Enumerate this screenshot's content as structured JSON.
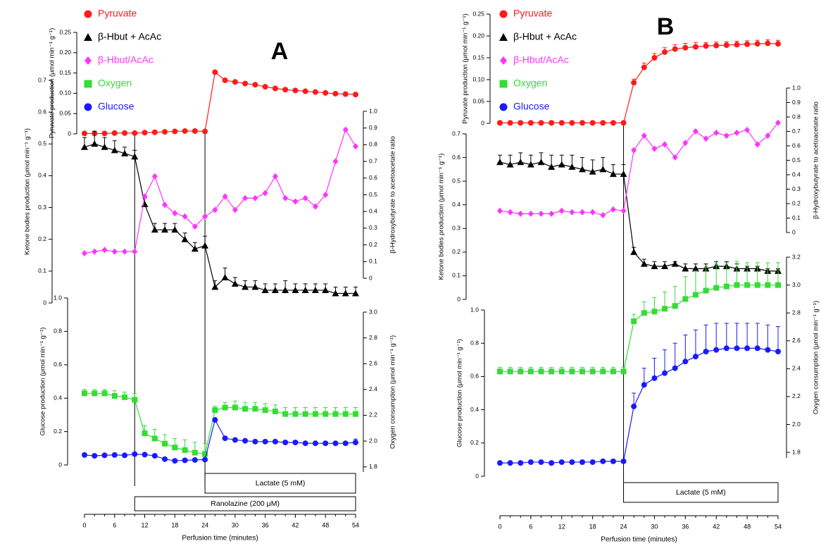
{
  "colors": {
    "pyruvate": "#ff1a1a",
    "ketone": "#000000",
    "ratio": "#ff33ff",
    "oxygen": "#33dd33",
    "glucose": "#1a1aff"
  },
  "legend": {
    "pyruvate": "Pyruvate",
    "hbut_acac": "β-Hbut + AcAc",
    "ratio": "β-Hbut/AcAc",
    "oxygen": "Oxygen",
    "glucose": "Glucose"
  },
  "chart_data": [
    {
      "type": "line",
      "panel_label": "A",
      "x_axis": {
        "label": "Perfusion time (minutes)",
        "ticks": [
          0,
          6,
          12,
          18,
          24,
          30,
          36,
          42,
          48,
          54
        ],
        "range": [
          0,
          54
        ]
      },
      "axes": {
        "pyruvate": {
          "label": "Pyruvate production (μmol min⁻¹ g⁻¹)",
          "ticks": [
            "0",
            "0.05",
            "0.10",
            "0.15",
            "0.20",
            "0.25"
          ],
          "range": [
            0,
            0.25
          ]
        },
        "ketone": {
          "label": "Ketone bodies production (μmol min⁻¹ g⁻¹)",
          "ticks": [
            "0",
            "0.1",
            "0.2",
            "0.3",
            "0.4",
            "0.5",
            "0.6",
            "0.7"
          ],
          "range": [
            0,
            0.7
          ]
        },
        "ratio": {
          "label": "β-Hydroxybutyrate to acetoacetate ratio",
          "ticks": [
            "0",
            "0.1",
            "0.2",
            "0.3",
            "0.4",
            "0.5",
            "0.6",
            "0.7",
            "0.8",
            "0.9",
            "1.0"
          ],
          "range": [
            0,
            1.0
          ]
        },
        "glucose": {
          "label": "Glucose production (μmol min⁻¹ g⁻¹)",
          "ticks": [
            "0",
            "0.2",
            "0.4",
            "0.6",
            "0.8",
            "1.0"
          ],
          "range": [
            0,
            1.0
          ]
        },
        "oxygen": {
          "label": "Oxygen consumption (μmol min⁻¹ g⁻¹)",
          "ticks": [
            "1.8",
            "2.0",
            "2.2",
            "2.4",
            "2.6",
            "2.8",
            "3.0"
          ],
          "range": [
            1.76,
            3.0
          ]
        }
      },
      "x": [
        0,
        2,
        4,
        6,
        8,
        10,
        12,
        14,
        16,
        18,
        20,
        22,
        24,
        26,
        28,
        30,
        32,
        34,
        36,
        38,
        40,
        42,
        44,
        46,
        48,
        50,
        52,
        54
      ],
      "series": [
        {
          "name": "Pyruvate",
          "axis": "pyruvate",
          "values": [
            0.001,
            0.001,
            0.001,
            0.002,
            0.002,
            0.002,
            0.003,
            0.004,
            0.005,
            0.006,
            0.007,
            0.007,
            0.006,
            0.152,
            0.132,
            0.128,
            0.124,
            0.121,
            0.116,
            0.112,
            0.109,
            0.107,
            0.105,
            0.103,
            0.101,
            0.099,
            0.098,
            0.097
          ]
        },
        {
          "name": "β-Hbut + AcAc",
          "axis": "ketone",
          "values": [
            0.49,
            0.5,
            0.49,
            0.48,
            0.47,
            0.46,
            0.31,
            0.23,
            0.23,
            0.23,
            0.2,
            0.17,
            0.18,
            0.05,
            0.08,
            0.06,
            0.05,
            0.05,
            0.04,
            0.04,
            0.04,
            0.04,
            0.04,
            0.04,
            0.04,
            0.03,
            0.03,
            0.03
          ],
          "error": [
            0.03,
            0.04,
            0.03,
            0.03,
            0.02,
            0.02,
            0.02,
            0.02,
            0.02,
            0.02,
            0.02,
            0.02,
            0.03,
            0.02,
            0.03,
            0.02,
            0.02,
            0.02,
            0.02,
            0.02,
            0.03,
            0.02,
            0.02,
            0.02,
            0.02,
            0.02,
            0.02,
            0.02
          ]
        },
        {
          "name": "β-Hbut/AcAc",
          "axis": "ratio",
          "values": [
            0.15,
            0.16,
            0.17,
            0.16,
            0.16,
            0.16,
            0.49,
            0.61,
            0.44,
            0.39,
            0.37,
            0.31,
            0.37,
            0.41,
            0.49,
            0.41,
            0.48,
            0.48,
            0.51,
            0.61,
            0.48,
            0.46,
            0.48,
            0.43,
            0.5,
            0.7,
            0.89,
            0.79
          ]
        },
        {
          "name": "Oxygen",
          "axis": "oxygen",
          "values": [
            2.37,
            2.37,
            2.37,
            2.35,
            2.34,
            2.32,
            2.06,
            2.02,
            1.98,
            1.95,
            1.93,
            1.91,
            1.9,
            2.24,
            2.26,
            2.26,
            2.25,
            2.25,
            2.24,
            2.23,
            2.21,
            2.21,
            2.21,
            2.21,
            2.21,
            2.21,
            2.21,
            2.21
          ],
          "error": [
            0.03,
            0.03,
            0.03,
            0.04,
            0.04,
            0.05,
            0.06,
            0.07,
            0.07,
            0.07,
            0.08,
            0.08,
            0.08,
            0.03,
            0.04,
            0.05,
            0.05,
            0.05,
            0.05,
            0.05,
            0.05,
            0.05,
            0.05,
            0.05,
            0.05,
            0.05,
            0.05,
            0.05
          ]
        },
        {
          "name": "Glucose",
          "axis": "glucose",
          "values": [
            0.06,
            0.055,
            0.058,
            0.06,
            0.058,
            0.065,
            0.062,
            0.055,
            0.035,
            0.025,
            0.028,
            0.03,
            0.032,
            0.27,
            0.16,
            0.15,
            0.145,
            0.14,
            0.14,
            0.14,
            0.135,
            0.135,
            0.13,
            0.13,
            0.13,
            0.13,
            0.13,
            0.135
          ],
          "error": [
            0.01,
            0.01,
            0.01,
            0.01,
            0.01,
            0.01,
            0.01,
            0.01,
            0.01,
            0.01,
            0.01,
            0.01,
            0.01,
            0.01,
            0.01,
            0.01,
            0.01,
            0.01,
            0.01,
            0.01,
            0.01,
            0.01,
            0.01,
            0.01,
            0.01,
            0.01,
            0.01,
            0.02
          ]
        }
      ],
      "treatments": [
        {
          "label": "Lactate (5 mM)",
          "start": 24,
          "end": 54
        },
        {
          "label": "Ranolazine (200 μM)",
          "start": 10,
          "end": 54
        }
      ],
      "vlines": [
        10,
        24
      ]
    },
    {
      "type": "line",
      "panel_label": "B",
      "x_axis": {
        "label": "Perfusion time (minutes)",
        "ticks": [
          0,
          6,
          12,
          18,
          24,
          30,
          36,
          42,
          48,
          54
        ],
        "range": [
          0,
          54
        ]
      },
      "axes": {
        "pyruvate": {
          "label": "Pyruvate production (μmol min⁻¹ g⁻¹)",
          "ticks": [
            "0",
            "0.05",
            "0.10",
            "0.15",
            "0.20",
            "0.25"
          ],
          "range": [
            0,
            0.25
          ]
        },
        "ketone": {
          "label": "Ketone bodies production (μmol min⁻¹ g⁻¹)",
          "ticks": [
            "0",
            "0.1",
            "0.2",
            "0.3",
            "0.4",
            "0.5",
            "0.6",
            "0.7"
          ],
          "range": [
            0,
            0.7
          ]
        },
        "ratio": {
          "label": "β-Hydroxybutyrate to acetoacetate ratio",
          "ticks": [
            "0",
            "0.1",
            "0.2",
            "0.3",
            "0.4",
            "0.5",
            "0.6",
            "0.7",
            "0.8",
            "0.9",
            "1.0"
          ],
          "range": [
            0,
            1.0
          ]
        },
        "glucose": {
          "label": "Glucose production (μmol min⁻¹ g⁻¹)",
          "ticks": [
            "0",
            "0.2",
            "0.4",
            "0.6",
            "0.8",
            "1.0"
          ],
          "range": [
            0,
            1.0
          ]
        },
        "oxygen": {
          "label": "Oxygen consumption (μmol min⁻¹ g⁻¹)",
          "ticks": [
            "1.8",
            "2.0",
            "2.2",
            "2.4",
            "2.6",
            "2.8",
            "3.0",
            "3.2"
          ],
          "range": [
            1.76,
            3.2
          ]
        }
      },
      "x": [
        0,
        2,
        4,
        6,
        8,
        10,
        12,
        14,
        16,
        18,
        20,
        22,
        24,
        26,
        28,
        30,
        32,
        34,
        36,
        38,
        40,
        42,
        44,
        46,
        48,
        50,
        52,
        54
      ],
      "series": [
        {
          "name": "Pyruvate",
          "axis": "pyruvate",
          "values": [
            0.001,
            0.001,
            0.001,
            0.001,
            0.001,
            0.001,
            0.001,
            0.001,
            0.001,
            0.001,
            0.001,
            0.001,
            0.001,
            0.093,
            0.128,
            0.15,
            0.163,
            0.17,
            0.173,
            0.175,
            0.177,
            0.178,
            0.179,
            0.18,
            0.181,
            0.182,
            0.183,
            0.182
          ],
          "error": [
            0.002,
            0.002,
            0.002,
            0.002,
            0.002,
            0.002,
            0.002,
            0.002,
            0.002,
            0.002,
            0.002,
            0.002,
            0.002,
            0.008,
            0.01,
            0.01,
            0.01,
            0.01,
            0.01,
            0.01,
            0.008,
            0.008,
            0.008,
            0.008,
            0.008,
            0.008,
            0.008,
            0.008
          ]
        },
        {
          "name": "β-Hbut + AcAc",
          "axis": "ketone",
          "values": [
            0.58,
            0.57,
            0.58,
            0.57,
            0.58,
            0.56,
            0.57,
            0.56,
            0.55,
            0.54,
            0.55,
            0.53,
            0.53,
            0.2,
            0.15,
            0.14,
            0.14,
            0.15,
            0.13,
            0.13,
            0.13,
            0.14,
            0.14,
            0.13,
            0.13,
            0.13,
            0.12,
            0.12
          ],
          "error": [
            0.03,
            0.04,
            0.04,
            0.04,
            0.04,
            0.05,
            0.04,
            0.05,
            0.05,
            0.05,
            0.05,
            0.04,
            0.04,
            0.02,
            0.02,
            0.02,
            0.02,
            0.01,
            0.02,
            0.02,
            0.02,
            0.02,
            0.02,
            0.02,
            0.01,
            0.01,
            0.01,
            0.01
          ]
        },
        {
          "name": "β-Hbut/AcAc",
          "axis": "ratio",
          "values": [
            0.15,
            0.14,
            0.13,
            0.13,
            0.13,
            0.13,
            0.15,
            0.14,
            0.14,
            0.14,
            0.12,
            0.16,
            0.15,
            0.57,
            0.67,
            0.58,
            0.61,
            0.52,
            0.62,
            0.7,
            0.65,
            0.69,
            0.67,
            0.69,
            0.71,
            0.61,
            0.67,
            0.76
          ]
        },
        {
          "name": "Oxygen",
          "axis": "oxygen",
          "values": [
            2.38,
            2.38,
            2.38,
            2.38,
            2.38,
            2.38,
            2.38,
            2.38,
            2.38,
            2.38,
            2.38,
            2.38,
            2.38,
            2.74,
            2.8,
            2.81,
            2.83,
            2.85,
            2.9,
            2.93,
            2.96,
            2.98,
            2.99,
            3.0,
            3.0,
            3.0,
            3.0,
            3.0
          ],
          "error": [
            0.03,
            0.03,
            0.03,
            0.03,
            0.03,
            0.03,
            0.03,
            0.03,
            0.03,
            0.03,
            0.03,
            0.03,
            0.03,
            0.05,
            0.08,
            0.1,
            0.12,
            0.14,
            0.16,
            0.17,
            0.17,
            0.17,
            0.17,
            0.17,
            0.16,
            0.16,
            0.16,
            0.16
          ]
        },
        {
          "name": "Glucose",
          "axis": "glucose",
          "values": [
            0.08,
            0.08,
            0.08,
            0.085,
            0.085,
            0.08,
            0.085,
            0.085,
            0.085,
            0.085,
            0.09,
            0.09,
            0.09,
            0.42,
            0.55,
            0.59,
            0.62,
            0.65,
            0.69,
            0.72,
            0.75,
            0.76,
            0.77,
            0.77,
            0.77,
            0.77,
            0.76,
            0.75
          ],
          "error": [
            0.01,
            0.01,
            0.01,
            0.01,
            0.01,
            0.01,
            0.01,
            0.01,
            0.01,
            0.01,
            0.01,
            0.01,
            0.01,
            0.08,
            0.1,
            0.12,
            0.14,
            0.15,
            0.16,
            0.16,
            0.16,
            0.16,
            0.15,
            0.15,
            0.15,
            0.15,
            0.15,
            0.15
          ]
        }
      ],
      "treatments": [
        {
          "label": "Lactate (5 mM)",
          "start": 24,
          "end": 54
        }
      ],
      "vlines": [
        24
      ]
    }
  ]
}
